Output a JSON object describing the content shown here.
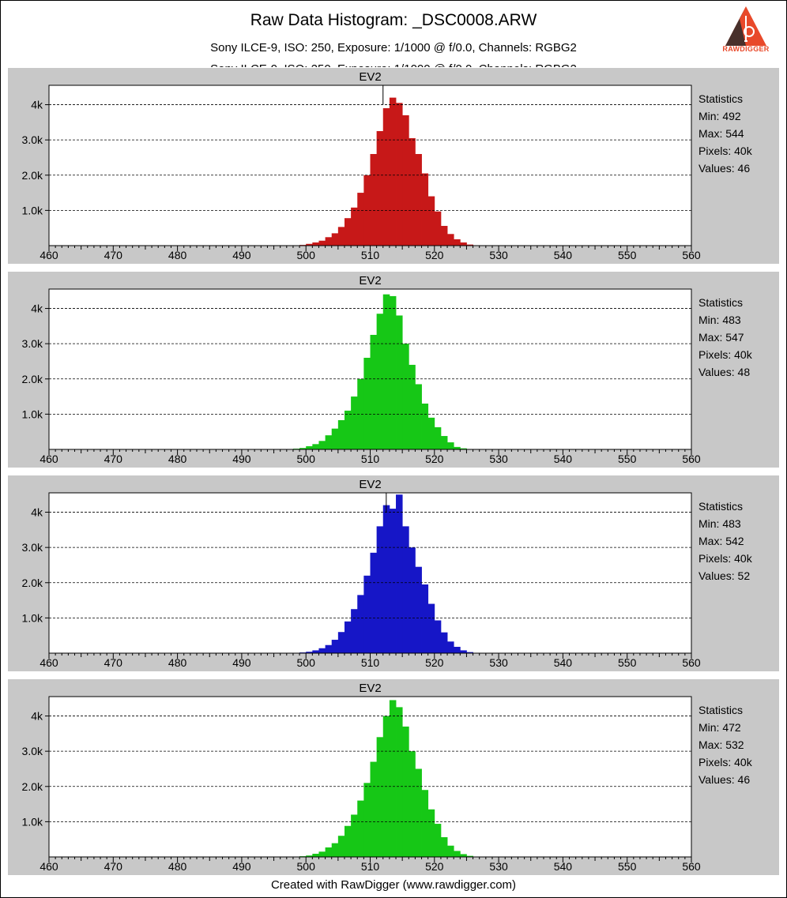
{
  "header": {
    "title": "Raw Data Histogram: _DSC0008.ARW",
    "subtitle": "Sony ILCE-9, ISO: 250, Exposure: 1/1000 @ f/0.0, Channels: RGBG2",
    "logo_text": "RAWDIGGER"
  },
  "footer": {
    "text": "Created with RawDigger (www.rawdigger.com)"
  },
  "chart_data": [
    {
      "type": "bar",
      "title": "EV2",
      "color": "#c71818",
      "xlim": [
        460,
        560
      ],
      "ylim": [
        0,
        4550
      ],
      "x_ticks": [
        460,
        470,
        480,
        490,
        500,
        510,
        520,
        530,
        540,
        550,
        560
      ],
      "x_tick_labels": [
        "460",
        "470",
        "480",
        "490",
        "500",
        "510",
        "520",
        "530",
        "540",
        "550",
        "560"
      ],
      "y_ticks": [
        1000,
        2000,
        3000,
        4000
      ],
      "y_tick_labels": [
        "1.0k",
        "2.0k",
        "3.0k",
        "4k"
      ],
      "grid": "horizontal dashed",
      "marker_x": 512,
      "stats": {
        "heading": "Statistics",
        "min": "Min: 492",
        "max": "Max: 544",
        "pixels": "Pixels: 40k",
        "values": "Values: 46"
      },
      "x": [
        498,
        499,
        500,
        501,
        502,
        503,
        504,
        505,
        506,
        507,
        508,
        509,
        510,
        511,
        512,
        513,
        514,
        515,
        516,
        517,
        518,
        519,
        520,
        521,
        522,
        523,
        524,
        525
      ],
      "values": [
        10,
        20,
        50,
        90,
        140,
        240,
        350,
        530,
        780,
        1080,
        1500,
        2000,
        2600,
        3250,
        3900,
        4200,
        4050,
        3700,
        3050,
        2600,
        2050,
        1400,
        970,
        560,
        330,
        180,
        90,
        30
      ]
    },
    {
      "type": "bar",
      "title": "EV2",
      "color": "#16c716",
      "xlim": [
        460,
        560
      ],
      "ylim": [
        0,
        4550
      ],
      "x_ticks": [
        460,
        470,
        480,
        490,
        500,
        510,
        520,
        530,
        540,
        550,
        560
      ],
      "x_tick_labels": [
        "460",
        "470",
        "480",
        "490",
        "500",
        "510",
        "520",
        "530",
        "540",
        "550",
        "560"
      ],
      "y_ticks": [
        1000,
        2000,
        3000,
        4000
      ],
      "y_tick_labels": [
        "1.0k",
        "2.0k",
        "3.0k",
        "4k"
      ],
      "grid": "horizontal dashed",
      "stats": {
        "heading": "Statistics",
        "min": "Min: 483",
        "max": "Max: 547",
        "pixels": "Pixels: 40k",
        "values": "Values: 48"
      },
      "x": [
        497,
        498,
        499,
        500,
        501,
        502,
        503,
        504,
        505,
        506,
        507,
        508,
        509,
        510,
        511,
        512,
        513,
        514,
        515,
        516,
        517,
        518,
        519,
        520,
        521,
        522,
        523,
        524
      ],
      "values": [
        10,
        20,
        40,
        90,
        150,
        240,
        400,
        590,
        830,
        1100,
        1500,
        2000,
        2600,
        3250,
        3850,
        4400,
        4350,
        3800,
        3000,
        2400,
        1850,
        1300,
        900,
        630,
        380,
        200,
        70,
        30
      ]
    },
    {
      "type": "bar",
      "title": "EV2",
      "color": "#1616c7",
      "xlim": [
        460,
        560
      ],
      "ylim": [
        0,
        4550
      ],
      "x_ticks": [
        460,
        470,
        480,
        490,
        500,
        510,
        520,
        530,
        540,
        550,
        560
      ],
      "x_tick_labels": [
        "460",
        "470",
        "480",
        "490",
        "500",
        "510",
        "520",
        "530",
        "540",
        "550",
        "560"
      ],
      "y_ticks": [
        1000,
        2000,
        3000,
        4000
      ],
      "y_tick_labels": [
        "1.0k",
        "2.0k",
        "3.0k",
        "4k"
      ],
      "grid": "horizontal dashed",
      "marker_x": 512.5,
      "stats": {
        "heading": "Statistics",
        "min": "Min: 483",
        "max": "Max: 542",
        "pixels": "Pixels: 40k",
        "values": "Values: 52"
      },
      "x": [
        498,
        499,
        500,
        501,
        502,
        503,
        504,
        505,
        506,
        507,
        508,
        509,
        510,
        511,
        512,
        513,
        514,
        515,
        516,
        517,
        518,
        519,
        520,
        521,
        522,
        523,
        524,
        525
      ],
      "values": [
        10,
        20,
        40,
        80,
        140,
        230,
        380,
        600,
        900,
        1250,
        1650,
        2200,
        2850,
        3600,
        4200,
        4100,
        4500,
        3600,
        3000,
        2450,
        1950,
        1400,
        930,
        590,
        330,
        180,
        80,
        30
      ]
    },
    {
      "type": "bar",
      "title": "EV2",
      "color": "#16c716",
      "xlim": [
        460,
        560
      ],
      "ylim": [
        0,
        4550
      ],
      "x_ticks": [
        460,
        470,
        480,
        490,
        500,
        510,
        520,
        530,
        540,
        550,
        560
      ],
      "x_tick_labels": [
        "460",
        "470",
        "480",
        "490",
        "500",
        "510",
        "520",
        "530",
        "540",
        "550",
        "560"
      ],
      "y_ticks": [
        1000,
        2000,
        3000,
        4000
      ],
      "y_tick_labels": [
        "1.0k",
        "2.0k",
        "3.0k",
        "4k"
      ],
      "grid": "horizontal dashed",
      "stats": {
        "heading": "Statistics",
        "min": "Min: 472",
        "max": "Max: 532",
        "pixels": "Pixels: 40k",
        "values": "Values: 46"
      },
      "x": [
        498,
        499,
        500,
        501,
        502,
        503,
        504,
        505,
        506,
        507,
        508,
        509,
        510,
        511,
        512,
        513,
        514,
        515,
        516,
        517,
        518,
        519,
        520,
        521,
        522,
        523,
        524,
        525
      ],
      "values": [
        10,
        20,
        40,
        90,
        150,
        270,
        390,
        600,
        880,
        1200,
        1600,
        2100,
        2700,
        3400,
        4000,
        4450,
        4250,
        3700,
        3000,
        2500,
        1900,
        1350,
        940,
        560,
        320,
        170,
        80,
        30
      ]
    }
  ]
}
